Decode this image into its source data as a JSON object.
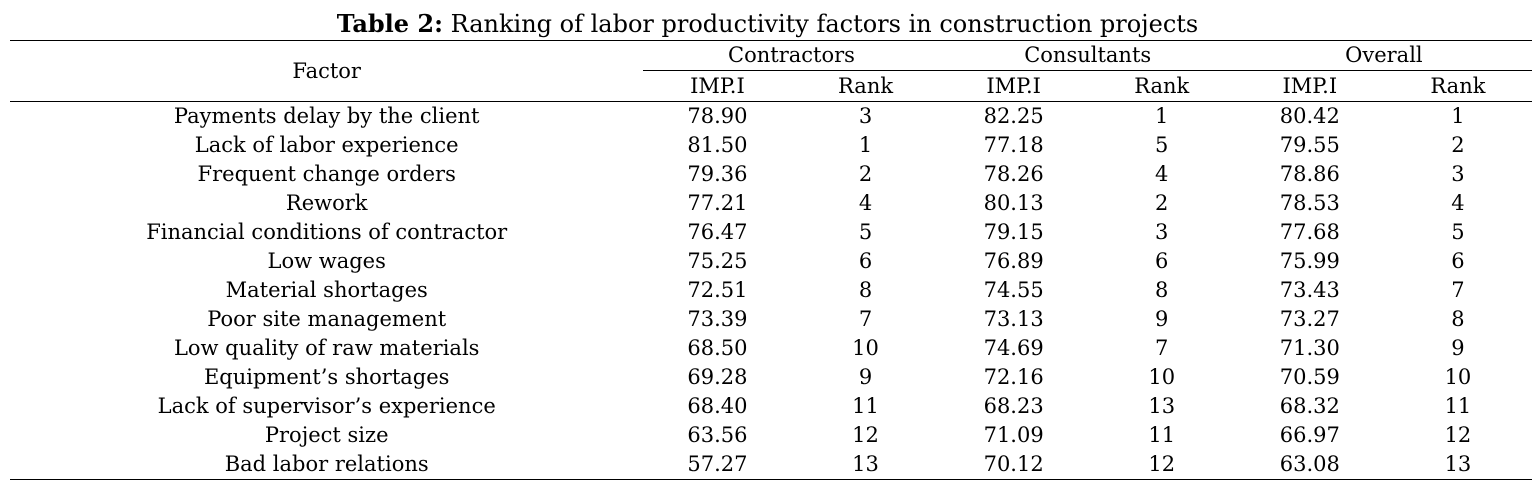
{
  "caption": {
    "label": "Table 2:",
    "text": "Ranking of labor productivity factors in construction projects"
  },
  "table": {
    "factor_header": "Factor",
    "groups": [
      {
        "name": "Contractors",
        "sub": [
          "IMP.I",
          "Rank"
        ]
      },
      {
        "name": "Consultants",
        "sub": [
          "IMP.I",
          "Rank"
        ]
      },
      {
        "name": "Overall",
        "sub": [
          "IMP.I",
          "Rank"
        ]
      }
    ],
    "rows": [
      [
        "Payments delay by the client",
        "78.90",
        "3",
        "82.25",
        "1",
        "80.42",
        "1"
      ],
      [
        "Lack of labor experience",
        "81.50",
        "1",
        "77.18",
        "5",
        "79.55",
        "2"
      ],
      [
        "Frequent change orders",
        "79.36",
        "2",
        "78.26",
        "4",
        "78.86",
        "3"
      ],
      [
        "Rework",
        "77.21",
        "4",
        "80.13",
        "2",
        "78.53",
        "4"
      ],
      [
        "Financial conditions of contractor",
        "76.47",
        "5",
        "79.15",
        "3",
        "77.68",
        "5"
      ],
      [
        "Low wages",
        "75.25",
        "6",
        "76.89",
        "6",
        "75.99",
        "6"
      ],
      [
        "Material shortages",
        "72.51",
        "8",
        "74.55",
        "8",
        "73.43",
        "7"
      ],
      [
        "Poor site management",
        "73.39",
        "7",
        "73.13",
        "9",
        "73.27",
        "8"
      ],
      [
        "Low quality of raw materials",
        "68.50",
        "10",
        "74.69",
        "7",
        "71.30",
        "9"
      ],
      [
        "Equipment’s shortages",
        "69.28",
        "9",
        "72.16",
        "10",
        "70.59",
        "10"
      ],
      [
        "Lack of supervisor’s experience",
        "68.40",
        "11",
        "68.23",
        "13",
        "68.32",
        "11"
      ],
      [
        "Project size",
        "63.56",
        "12",
        "71.09",
        "11",
        "66.97",
        "12"
      ],
      [
        "Bad labor relations",
        "57.27",
        "13",
        "70.12",
        "12",
        "63.08",
        "13"
      ]
    ]
  }
}
